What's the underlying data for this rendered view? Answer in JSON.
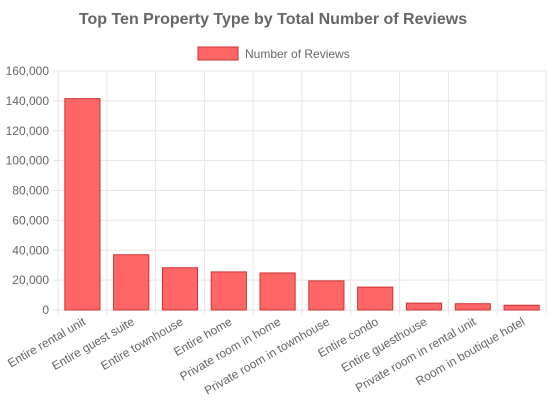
{
  "chart_data": {
    "type": "bar",
    "title": "Top Ten Property Type by Total Number of Reviews",
    "categories": [
      "Entire rental unit",
      "Entire guest suite",
      "Entire townhouse",
      "Entire home",
      "Private room in home",
      "Private room in townhouse",
      "Entire condo",
      "Entire guesthouse",
      "Private room in rental unit",
      "Room in boutique hotel"
    ],
    "series": [
      {
        "name": "Number of Reviews",
        "values": [
          141500,
          37000,
          28300,
          25500,
          24800,
          19500,
          15300,
          4600,
          4200,
          3200
        ]
      }
    ],
    "ylim": [
      0,
      160000
    ],
    "yticks": [
      "0",
      "20,000",
      "40,000",
      "60,000",
      "80,000",
      "100,000",
      "120,000",
      "140,000",
      "160,000"
    ],
    "legend_position": "top-center",
    "grid": true,
    "colors": {
      "bar_fill": "#ff6666",
      "bar_border": "#cc3333",
      "text": "#666666",
      "grid": "#e6e6e6"
    }
  }
}
